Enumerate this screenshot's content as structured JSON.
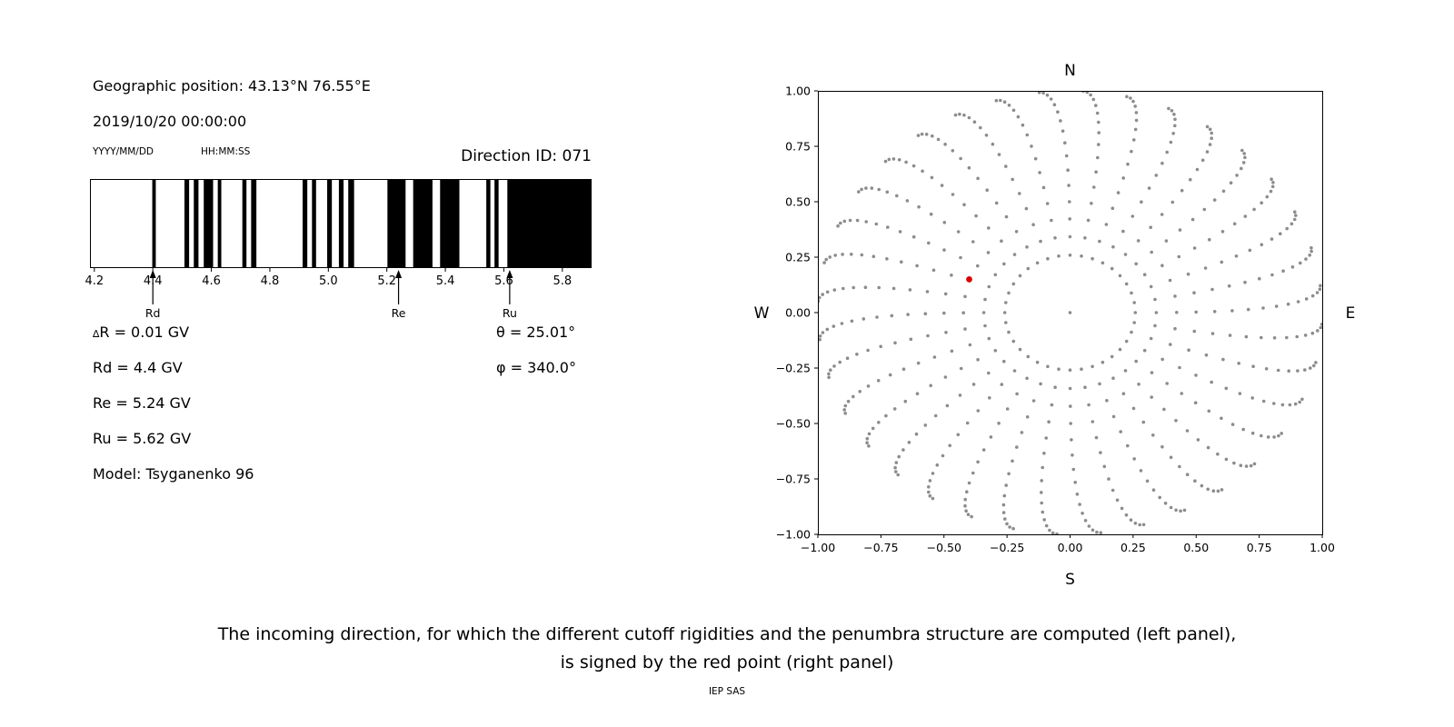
{
  "header": {
    "geographic_position": "Geographic position: 43.13°N 76.55°E",
    "datetime": "2019/10/20 00:00:00",
    "date_format_label": "YYYY/MM/DD",
    "time_format_label": "HH:MM:SS",
    "direction_id": "Direction ID: 071"
  },
  "parameters": {
    "delta_r_symbol": "∆",
    "delta_r_text": "R = 0.01 GV",
    "rd": "Rd = 4.4 GV",
    "re": "Re = 5.24 GV",
    "ru": "Ru = 5.62 GV",
    "model": "Model: Tsyganenko 96",
    "theta": "θ = 25.01°",
    "phi": "φ = 340.0°"
  },
  "caption": {
    "line1": "The incoming direction, for which the different cutoff rigidities and the penumbra structure are computed (left panel),",
    "line2": "is signed by the red point (right panel)",
    "credit": "IEP SAS"
  },
  "chart_data": [
    {
      "type": "bar",
      "title": "Direction ID: 071",
      "description": "Penumbra structure: black bands are forbidden rigidity intervals in GV",
      "xlim": [
        4.185,
        5.9
      ],
      "xticks": [
        "4.2",
        "4.4",
        "4.6",
        "4.8",
        "5.0",
        "5.2",
        "5.4",
        "5.6",
        "5.8"
      ],
      "bar_color": "#000000",
      "black_bands_gv": [
        [
          4.398,
          4.41
        ],
        [
          4.508,
          4.524
        ],
        [
          4.54,
          4.556
        ],
        [
          4.574,
          4.606
        ],
        [
          4.622,
          4.634
        ],
        [
          4.706,
          4.72
        ],
        [
          4.736,
          4.754
        ],
        [
          4.912,
          4.928
        ],
        [
          4.944,
          4.958
        ],
        [
          4.996,
          5.012
        ],
        [
          5.036,
          5.052
        ],
        [
          5.068,
          5.088
        ],
        [
          5.202,
          5.264
        ],
        [
          5.29,
          5.356
        ],
        [
          5.382,
          5.448
        ],
        [
          5.54,
          5.554
        ],
        [
          5.568,
          5.582
        ],
        [
          5.612,
          5.9
        ]
      ],
      "markers": [
        {
          "label": "Rd",
          "x_gv": 4.4
        },
        {
          "label": "Re",
          "x_gv": 5.24
        },
        {
          "label": "Ru",
          "x_gv": 5.62
        }
      ]
    },
    {
      "type": "scatter",
      "description": "Sky map of incoming directions; grid of gray dots, selected direction shown as red point",
      "xlim": [
        -1.0,
        1.0
      ],
      "ylim": [
        -1.0,
        1.0
      ],
      "xticks": [
        "−1.00",
        "−0.75",
        "−0.50",
        "−0.25",
        "0.00",
        "0.25",
        "0.50",
        "0.75",
        "1.00"
      ],
      "yticks": [
        "1.00",
        "0.75",
        "0.50",
        "0.25",
        "0.00",
        "−0.25",
        "−0.50",
        "−0.75",
        "−1.00"
      ],
      "compass_labels": {
        "top": "N",
        "bottom": "S",
        "left": "W",
        "right": "E"
      },
      "dot_color": "#8c8c8c",
      "center_dot": {
        "x": 0.0,
        "y": 0.0
      },
      "direction_grid": {
        "azimuth_deg_start": 0,
        "azimuth_deg_step": 10,
        "azimuth_count": 36,
        "zenith_deg_values": [
          15,
          20,
          25,
          30,
          35,
          40,
          45,
          50,
          55,
          60,
          65,
          70,
          75,
          80,
          85,
          90
        ],
        "radius_projection": "sin(zenith)",
        "spiral_twist_deg": 7
      },
      "selected_point": {
        "x": -0.4,
        "y": 0.15,
        "color": "#dd0000",
        "theta_deg": 25.01,
        "phi_deg": 340.0
      }
    }
  ]
}
